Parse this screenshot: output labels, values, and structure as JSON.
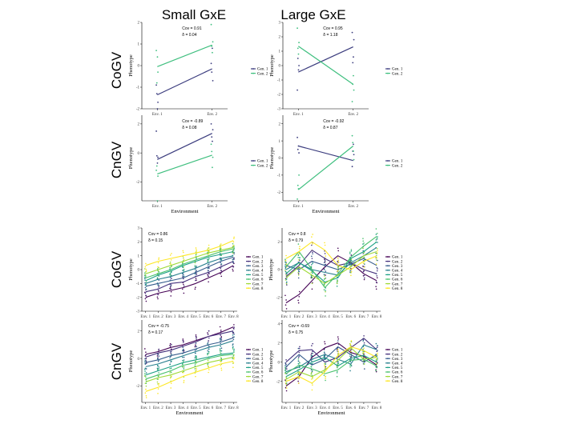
{
  "column_titles": [
    "Small GxE",
    "Large GxE"
  ],
  "row_titles": [
    "CoGV",
    "CnGV",
    "CoGV",
    "CnGV"
  ],
  "palette2": [
    "#3b3c7e",
    "#3fbf7f"
  ],
  "palette8": [
    "#440154",
    "#46327e",
    "#365c8d",
    "#277f8e",
    "#1fa187",
    "#4ac16d",
    "#a0da39",
    "#fde725"
  ],
  "chart_data": [
    {
      "id": "small-cogv-2env",
      "type": "line",
      "ylim": [
        -2,
        2
      ],
      "yticks": [
        -2,
        -1,
        0,
        1,
        2
      ],
      "categories": [
        "Env. 1",
        "Env. 2"
      ],
      "xlabel": "",
      "ylabel": "Phenotype",
      "series": [
        {
          "name": "Gen. 1",
          "values": [
            -1.35,
            -0.15
          ]
        },
        {
          "name": "Gen. 2",
          "values": [
            -0.05,
            0.95
          ]
        }
      ],
      "points": [
        [
          [
            -0.9,
            -1.7,
            -2.0,
            -1.3
          ],
          [
            0.1,
            -0.7,
            0.8,
            -0.3
          ]
        ],
        [
          [
            0.7,
            -0.3,
            0.4,
            -0.8
          ],
          [
            1.9,
            1.1,
            0.6,
            0.9
          ]
        ]
      ],
      "annotation": [
        "Cov = 0.91",
        "δ = 0.04"
      ],
      "legend": [
        "Gen. 1",
        "Gen. 2"
      ]
    },
    {
      "id": "large-cogv-2env",
      "type": "line",
      "ylim": [
        -3,
        3
      ],
      "yticks": [
        -3,
        -2,
        -1,
        0,
        1,
        2,
        3
      ],
      "categories": [
        "Env. 1",
        "Env. 2"
      ],
      "xlabel": "",
      "ylabel": "Phenotype",
      "series": [
        {
          "name": "Gen. 1",
          "values": [
            -0.45,
            1.3
          ]
        },
        {
          "name": "Gen. 2",
          "values": [
            1.35,
            -1.3
          ]
        }
      ],
      "points": [
        [
          [
            -1.7,
            0.0,
            -0.3,
            0.5
          ],
          [
            2.3,
            1.8,
            0.6,
            0.2
          ]
        ],
        [
          [
            2.6,
            1.6,
            0.8,
            1.2
          ],
          [
            -2.5,
            -1.7,
            -0.7,
            -1.3
          ]
        ]
      ],
      "annotation": [
        "Cov = 0.95",
        "δ = 1.18"
      ],
      "legend": [
        "Gen. 1",
        "Gen. 2"
      ]
    },
    {
      "id": "small-cngv-2env",
      "type": "line",
      "ylim": [
        -3.3,
        2.6
      ],
      "yticks": [
        -2,
        0,
        2
      ],
      "categories": [
        "Env. 1",
        "Env. 2"
      ],
      "xlabel": "Environment",
      "ylabel": "Phenotype",
      "series": [
        {
          "name": "Gen. 1",
          "values": [
            -0.45,
            1.35
          ]
        },
        {
          "name": "Gen. 2",
          "values": [
            -1.45,
            -0.15
          ]
        }
      ],
      "points": [
        [
          [
            1.5,
            -0.3,
            -0.7,
            -0.2
          ],
          [
            2.0,
            1.6,
            0.8,
            1.1
          ]
        ],
        [
          [
            -1.2,
            -1.6,
            -3.3,
            -0.9
          ],
          [
            0.6,
            -0.3,
            -1.0,
            0.1
          ]
        ]
      ],
      "annotation": [
        "Cov = -0.89",
        "δ = 0.08"
      ],
      "legend": [
        "Gen. 1",
        "Gen. 2"
      ]
    },
    {
      "id": "large-cngv-2env",
      "type": "line",
      "ylim": [
        -2.5,
        2.5
      ],
      "yticks": [
        -2,
        -1,
        0,
        1,
        2
      ],
      "categories": [
        "Env. 1",
        "Env. 2"
      ],
      "xlabel": "Environment",
      "ylabel": "Phenotype",
      "series": [
        {
          "name": "Gen. 1",
          "values": [
            0.7,
            -0.15
          ]
        },
        {
          "name": "Gen. 2",
          "values": [
            -1.85,
            0.7
          ]
        }
      ],
      "points": [
        [
          [
            1.2,
            0.3,
            0.7,
            0.5
          ],
          [
            -0.5,
            0.2,
            0.8,
            0.4
          ]
        ],
        [
          [
            -2.4,
            -1.0,
            -1.8,
            -1.6
          ],
          [
            1.3,
            -0.1,
            0.4,
            0.9
          ]
        ]
      ],
      "annotation": [
        "Cov = -0.92",
        "δ = 0.87"
      ],
      "legend": [
        "Gen. 1",
        "Gen. 2"
      ]
    },
    {
      "id": "small-cogv-8env",
      "type": "line",
      "ylim": [
        -3,
        3
      ],
      "yticks": [
        -3,
        -2,
        -1,
        0,
        1,
        2,
        3
      ],
      "categories": [
        "Env. 1",
        "Env. 2",
        "Env. 3",
        "Env. 4",
        "Env. 5",
        "Env. 6",
        "Env. 7",
        "Env. 8"
      ],
      "xlabel": "",
      "ylabel": "Phenotype",
      "series": [
        {
          "name": "Gen. 1",
          "values": [
            -2.0,
            -1.7,
            -1.5,
            -1.3,
            -1.0,
            -0.6,
            -0.2,
            0.3
          ]
        },
        {
          "name": "Gen. 2",
          "values": [
            -1.6,
            -1.4,
            -1.0,
            -0.9,
            -0.5,
            -0.2,
            0.2,
            0.6
          ]
        },
        {
          "name": "Gen. 3",
          "values": [
            -1.2,
            -1.0,
            -0.8,
            -0.6,
            -0.2,
            0.2,
            0.6,
            0.9
          ]
        },
        {
          "name": "Gen. 4",
          "values": [
            -1.0,
            -0.7,
            -0.5,
            -0.2,
            0.1,
            0.5,
            0.8,
            1.0
          ]
        },
        {
          "name": "Gen. 5",
          "values": [
            -0.8,
            -0.4,
            -0.1,
            0.3,
            0.6,
            0.9,
            1.1,
            1.3
          ]
        },
        {
          "name": "Gen. 6",
          "values": [
            -0.6,
            -0.3,
            0.0,
            0.4,
            0.7,
            1.0,
            1.3,
            1.5
          ]
        },
        {
          "name": "Gen. 7",
          "values": [
            -0.3,
            0.0,
            0.3,
            0.6,
            0.9,
            1.2,
            1.4,
            1.6
          ]
        },
        {
          "name": "Gen. 8",
          "values": [
            0.3,
            0.6,
            0.8,
            1.0,
            1.2,
            1.4,
            1.7,
            2.1
          ]
        }
      ],
      "jitter": 0.4,
      "annotation": [
        "Cov = 0.86",
        "δ = 0.15"
      ],
      "legend": [
        "Gen. 1",
        "Gen. 2",
        "Gen. 3",
        "Gen. 4",
        "Gen. 5",
        "Gen. 6",
        "Gen. 7",
        "Gen. 8"
      ]
    },
    {
      "id": "large-cogv-8env",
      "type": "line",
      "ylim": [
        -3,
        3
      ],
      "yticks": [
        -2,
        0,
        2
      ],
      "categories": [
        "Env. 1",
        "Env. 2",
        "Env. 3",
        "Env. 4",
        "Env. 5",
        "Env. 6",
        "Env. 7",
        "Env. 8"
      ],
      "xlabel": "",
      "ylabel": "Phenotype",
      "series": [
        {
          "name": "Gen. 1",
          "values": [
            -2.4,
            -1.8,
            -0.8,
            0.2,
            1.0,
            0.5,
            -0.3,
            -0.8
          ]
        },
        {
          "name": "Gen. 2",
          "values": [
            -0.5,
            0.3,
            1.4,
            0.8,
            0.3,
            0.5,
            0.0,
            -0.3
          ]
        },
        {
          "name": "Gen. 3",
          "values": [
            0.3,
            0.0,
            0.6,
            0.3,
            0.0,
            0.4,
            0.8,
            0.3
          ]
        },
        {
          "name": "Gen. 4",
          "values": [
            0.0,
            0.5,
            0.0,
            -0.2,
            -0.4,
            0.5,
            1.0,
            1.6
          ]
        },
        {
          "name": "Gen. 5",
          "values": [
            -0.3,
            0.5,
            -0.1,
            -0.9,
            -0.6,
            0.8,
            1.3,
            2.0
          ]
        },
        {
          "name": "Gen. 6",
          "values": [
            0.2,
            1.3,
            0.0,
            -1.3,
            -0.3,
            0.9,
            1.7,
            2.4
          ]
        },
        {
          "name": "Gen. 7",
          "values": [
            -0.6,
            0.2,
            -0.4,
            -1.0,
            -0.4,
            0.2,
            1.0,
            1.3
          ]
        },
        {
          "name": "Gen. 8",
          "values": [
            0.8,
            1.3,
            2.0,
            1.4,
            0.3,
            0.0,
            0.6,
            1.0
          ]
        }
      ],
      "jitter": 0.6,
      "annotation": [
        "Cov = 0.8",
        "δ = 0.79"
      ],
      "legend": [
        "Gen. 1",
        "Gen. 2",
        "Gen. 3",
        "Gen. 4",
        "Gen. 5",
        "Gen. 6",
        "Gen. 7",
        "Gen. 8"
      ]
    },
    {
      "id": "small-cngv-8env",
      "type": "line",
      "ylim": [
        -3.2,
        2.8
      ],
      "yticks": [
        -2,
        0,
        2
      ],
      "categories": [
        "Env. 1",
        "Env. 2",
        "Env. 3",
        "Env. 4",
        "Env. 5",
        "Env. 6",
        "Env. 7",
        "Env. 8"
      ],
      "xlabel": "Environment",
      "ylabel": "Phenotype",
      "series": [
        {
          "name": "Gen. 1",
          "values": [
            0.3,
            0.5,
            0.8,
            1.0,
            1.3,
            1.6,
            1.9,
            2.3
          ]
        },
        {
          "name": "Gen. 2",
          "values": [
            0.1,
            0.4,
            0.6,
            0.9,
            1.2,
            1.6,
            1.8,
            2.0
          ]
        },
        {
          "name": "Gen. 3",
          "values": [
            -0.3,
            -0.1,
            0.2,
            0.4,
            0.7,
            1.0,
            1.2,
            1.5
          ]
        },
        {
          "name": "Gen. 4",
          "values": [
            -0.6,
            -0.4,
            -0.1,
            0.2,
            0.5,
            0.8,
            1.0,
            1.3
          ]
        },
        {
          "name": "Gen. 5",
          "values": [
            -1.2,
            -0.9,
            -0.6,
            -0.3,
            -0.1,
            0.1,
            0.3,
            0.4
          ]
        },
        {
          "name": "Gen. 6",
          "values": [
            -1.5,
            -1.2,
            -0.9,
            -0.5,
            -0.3,
            0.0,
            0.2,
            0.3
          ]
        },
        {
          "name": "Gen. 7",
          "values": [
            -1.7,
            -1.4,
            -1.2,
            -0.9,
            -0.6,
            -0.3,
            -0.1,
            0.1
          ]
        },
        {
          "name": "Gen. 8",
          "values": [
            -2.4,
            -2.1,
            -1.7,
            -1.3,
            -1.0,
            -0.7,
            -0.4,
            -0.2
          ]
        }
      ],
      "jitter": 0.45,
      "annotation": [
        "Cov = -0.75",
        "δ = 0.17"
      ],
      "legend": [
        "Gen. 1",
        "Gen. 2",
        "Gen. 3",
        "Gen. 4",
        "Gen. 5",
        "Gen. 6",
        "Gen. 7",
        "Gen. 8"
      ]
    },
    {
      "id": "large-cngv-8env",
      "type": "line",
      "ylim": [
        -4.2,
        4.4
      ],
      "yticks": [
        -2,
        0,
        2,
        4
      ],
      "categories": [
        "Env. 1",
        "Env. 2",
        "Env. 3",
        "Env. 4",
        "Env. 5",
        "Env. 6",
        "Env. 7",
        "Env. 8"
      ],
      "xlabel": "Environment",
      "ylabel": "Phenotype",
      "series": [
        {
          "name": "Gen. 1",
          "values": [
            -2.5,
            -1.5,
            0.5,
            1.5,
            2.0,
            1.0,
            0.6,
            -0.3
          ]
        },
        {
          "name": "Gen. 2",
          "values": [
            0.0,
            1.2,
            1.3,
            0.0,
            0.5,
            1.5,
            2.5,
            1.3
          ]
        },
        {
          "name": "Gen. 3",
          "values": [
            -0.5,
            0.8,
            -0.3,
            0.3,
            1.6,
            0.8,
            0.0,
            0.8
          ]
        },
        {
          "name": "Gen. 4",
          "values": [
            -1.0,
            -0.5,
            0.3,
            0.8,
            0.3,
            -0.2,
            1.8,
            1.3
          ]
        },
        {
          "name": "Gen. 5",
          "values": [
            -1.5,
            -0.8,
            0.0,
            0.5,
            -0.4,
            0.4,
            0.7,
            0.0
          ]
        },
        {
          "name": "Gen. 6",
          "values": [
            -1.2,
            -0.3,
            -0.7,
            -1.2,
            -0.8,
            0.2,
            0.3,
            -0.4
          ]
        },
        {
          "name": "Gen. 7",
          "values": [
            -1.8,
            -1.0,
            -1.5,
            -0.8,
            0.2,
            1.5,
            0.3,
            0.5
          ]
        },
        {
          "name": "Gen. 8",
          "values": [
            -2.0,
            -1.5,
            -2.2,
            -1.0,
            0.7,
            1.6,
            1.2,
            0.5
          ]
        }
      ],
      "jitter": 0.7,
      "annotation": [
        "Cov = -0.69",
        "δ = 0.75"
      ],
      "legend": [
        "Gen. 1",
        "Gen. 2",
        "Gen. 3",
        "Gen. 4",
        "Gen. 5",
        "Gen. 6",
        "Gen. 7",
        "Gen. 8"
      ]
    }
  ]
}
